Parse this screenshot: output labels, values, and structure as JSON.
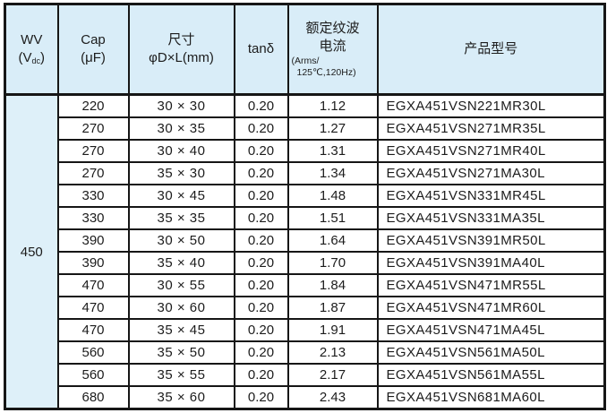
{
  "table": {
    "header": {
      "wv": {
        "line1": "WV",
        "open": "(V",
        "sub": "dc",
        "close": ")"
      },
      "cap": {
        "line1": "Cap",
        "line2": "(μF)"
      },
      "size": {
        "line1": "尺寸",
        "line2": "φD×L(mm)"
      },
      "tand": {
        "label": "tanδ"
      },
      "ripple": {
        "line1": "额定纹波",
        "line2": "电流",
        "line3": "(Arms/",
        "line4": "125℃,120Hz)"
      },
      "model": {
        "label": "产品型号"
      }
    },
    "wv_value": "450",
    "rows": [
      {
        "cap": "220",
        "size": "30 × 30",
        "tand": "0.20",
        "ripple": "1.12",
        "model": "EGXA451VSN221MR30L"
      },
      {
        "cap": "270",
        "size": "30 × 35",
        "tand": "0.20",
        "ripple": "1.27",
        "model": "EGXA451VSN271MR35L"
      },
      {
        "cap": "270",
        "size": "30 × 40",
        "tand": "0.20",
        "ripple": "1.31",
        "model": "EGXA451VSN271MR40L"
      },
      {
        "cap": "270",
        "size": "35 × 30",
        "tand": "0.20",
        "ripple": "1.34",
        "model": "EGXA451VSN271MA30L"
      },
      {
        "cap": "330",
        "size": "30 × 45",
        "tand": "0.20",
        "ripple": "1.48",
        "model": "EGXA451VSN331MR45L"
      },
      {
        "cap": "330",
        "size": "35 × 35",
        "tand": "0.20",
        "ripple": "1.51",
        "model": "EGXA451VSN331MA35L"
      },
      {
        "cap": "390",
        "size": "30 × 50",
        "tand": "0.20",
        "ripple": "1.64",
        "model": "EGXA451VSN391MR50L"
      },
      {
        "cap": "390",
        "size": "35 × 40",
        "tand": "0.20",
        "ripple": "1.70",
        "model": "EGXA451VSN391MA40L"
      },
      {
        "cap": "470",
        "size": "30 × 55",
        "tand": "0.20",
        "ripple": "1.84",
        "model": "EGXA451VSN471MR55L"
      },
      {
        "cap": "470",
        "size": "30 × 60",
        "tand": "0.20",
        "ripple": "1.87",
        "model": "EGXA451VSN471MR60L"
      },
      {
        "cap": "470",
        "size": "35 × 45",
        "tand": "0.20",
        "ripple": "1.91",
        "model": "EGXA451VSN471MA45L"
      },
      {
        "cap": "560",
        "size": "35 × 50",
        "tand": "0.20",
        "ripple": "2.13",
        "model": "EGXA451VSN561MA50L"
      },
      {
        "cap": "560",
        "size": "35 × 55",
        "tand": "0.20",
        "ripple": "2.17",
        "model": "EGXA451VSN561MA55L"
      },
      {
        "cap": "680",
        "size": "35 × 60",
        "tand": "0.20",
        "ripple": "2.43",
        "model": "EGXA451VSN681MA60L"
      }
    ],
    "colors": {
      "header_bg": "#d9edf8",
      "wv_col_bg": "#def0f9",
      "border": "#161616",
      "text": "#1c1c1c"
    }
  }
}
